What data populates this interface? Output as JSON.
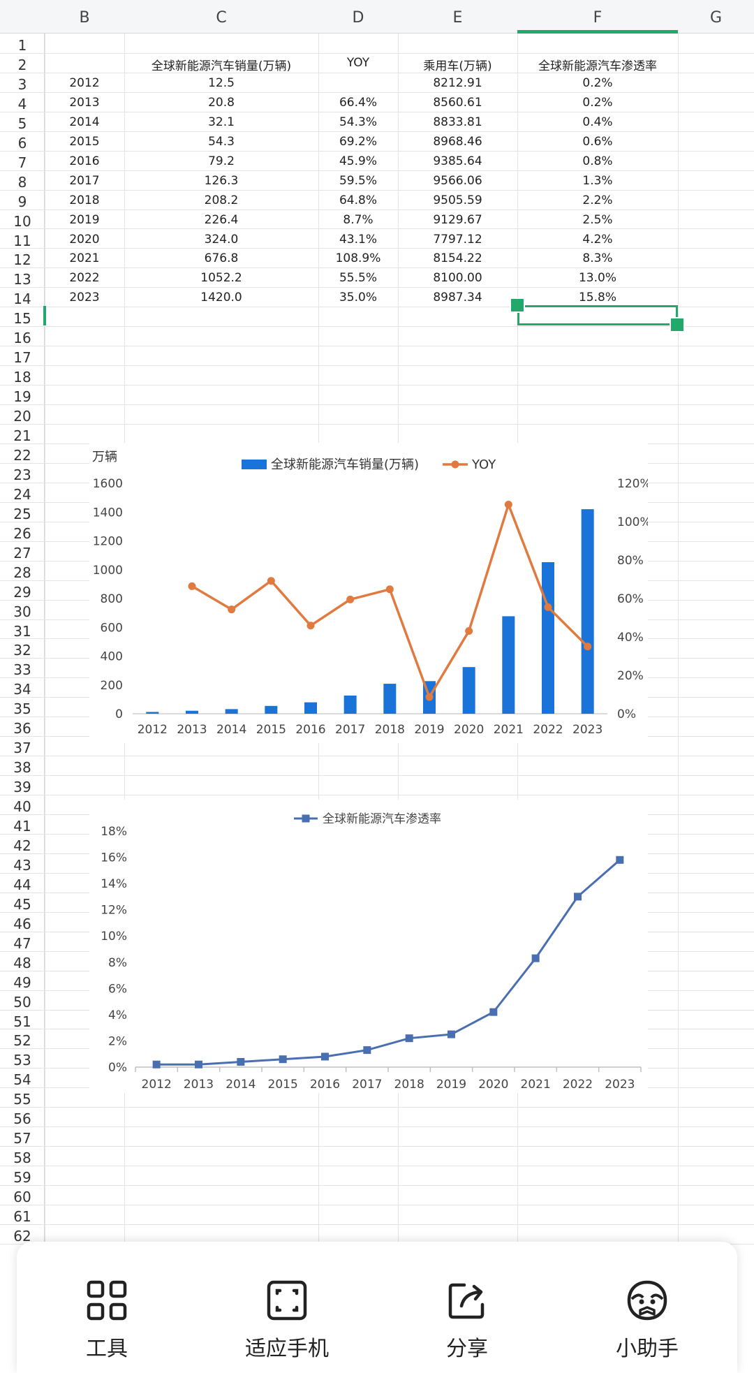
{
  "columns": [
    "B",
    "C",
    "D",
    "E",
    "F",
    "G"
  ],
  "rows": [
    "1",
    "2",
    "3",
    "4",
    "5",
    "6",
    "7",
    "8",
    "9",
    "10",
    "11",
    "12",
    "13",
    "14",
    "15",
    "16",
    "17",
    "18",
    "19",
    "20",
    "21",
    "22",
    "23",
    "24",
    "25",
    "26",
    "27",
    "28",
    "29",
    "30",
    "31",
    "32",
    "33",
    "34",
    "35",
    "36",
    "37",
    "38",
    "39",
    "40",
    "41",
    "42",
    "43",
    "44",
    "45",
    "46",
    "47",
    "48",
    "49",
    "50",
    "51",
    "52",
    "53",
    "54",
    "55",
    "56",
    "57",
    "58",
    "59",
    "60",
    "61",
    "62"
  ],
  "table": {
    "headers": [
      "",
      "全球新能源汽车销量(万辆)",
      "YOY",
      "乘用车(万辆)",
      "全球新能源汽车渗透率"
    ],
    "data": [
      [
        "2012",
        "12.5",
        "",
        "8212.91",
        "0.2%"
      ],
      [
        "2013",
        "20.8",
        "66.4%",
        "8560.61",
        "0.2%"
      ],
      [
        "2014",
        "32.1",
        "54.3%",
        "8833.81",
        "0.4%"
      ],
      [
        "2015",
        "54.3",
        "69.2%",
        "8968.46",
        "0.6%"
      ],
      [
        "2016",
        "79.2",
        "45.9%",
        "9385.64",
        "0.8%"
      ],
      [
        "2017",
        "126.3",
        "59.5%",
        "9566.06",
        "1.3%"
      ],
      [
        "2018",
        "208.2",
        "64.8%",
        "9505.59",
        "2.2%"
      ],
      [
        "2019",
        "226.4",
        "8.7%",
        "9129.67",
        "2.5%"
      ],
      [
        "2020",
        "324.0",
        "43.1%",
        "7797.12",
        "4.2%"
      ],
      [
        "2021",
        "676.8",
        "108.9%",
        "8154.22",
        "8.3%"
      ],
      [
        "2022",
        "1052.2",
        "55.5%",
        "8100.00",
        "13.0%"
      ],
      [
        "2023",
        "1420.0",
        "35.0%",
        "8987.34",
        "15.8%"
      ]
    ]
  },
  "chart_data": [
    {
      "type": "bar",
      "unit_label": "万辆",
      "categories": [
        "2012",
        "2013",
        "2014",
        "2015",
        "2016",
        "2017",
        "2018",
        "2019",
        "2020",
        "2021",
        "2022",
        "2023"
      ],
      "series": [
        {
          "name": "全球新能源汽车销量(万辆)",
          "type": "bar",
          "axis": "left",
          "color": "#1a73d9",
          "values": [
            12.5,
            20.8,
            32.1,
            54.3,
            79.2,
            126.3,
            208.2,
            226.4,
            324.0,
            676.8,
            1052.2,
            1420.0
          ]
        },
        {
          "name": "YOY",
          "type": "line",
          "axis": "right",
          "color": "#e07a3f",
          "values": [
            null,
            66.4,
            54.3,
            69.2,
            45.9,
            59.5,
            64.8,
            8.7,
            43.1,
            108.9,
            55.5,
            35.0
          ]
        }
      ],
      "yticks_left": [
        "0",
        "200",
        "400",
        "600",
        "800",
        "1000",
        "1200",
        "1400",
        "1600"
      ],
      "ylim_left": [
        0,
        1600
      ],
      "yticks_right": [
        "0%",
        "20%",
        "40%",
        "60%",
        "80%",
        "100%",
        "120%"
      ],
      "ylim_right": [
        0,
        120
      ],
      "legend": "top",
      "grid": false
    },
    {
      "type": "line",
      "categories": [
        "2012",
        "2013",
        "2014",
        "2015",
        "2016",
        "2017",
        "2018",
        "2019",
        "2020",
        "2021",
        "2022",
        "2023"
      ],
      "series": [
        {
          "name": "全球新能源汽车渗透率",
          "color": "#4a6fb0",
          "values": [
            0.2,
            0.2,
            0.4,
            0.6,
            0.8,
            1.3,
            2.2,
            2.5,
            4.2,
            8.3,
            13.0,
            15.8
          ]
        }
      ],
      "yticks": [
        "0%",
        "2%",
        "4%",
        "6%",
        "8%",
        "10%",
        "12%",
        "14%",
        "16%",
        "18%"
      ],
      "ylim": [
        0,
        18
      ],
      "legend": "top",
      "grid": false
    }
  ],
  "bottom_bar": {
    "tools": "工具",
    "fit_phone": "适应手机",
    "share": "分享",
    "assistant": "小助手"
  }
}
